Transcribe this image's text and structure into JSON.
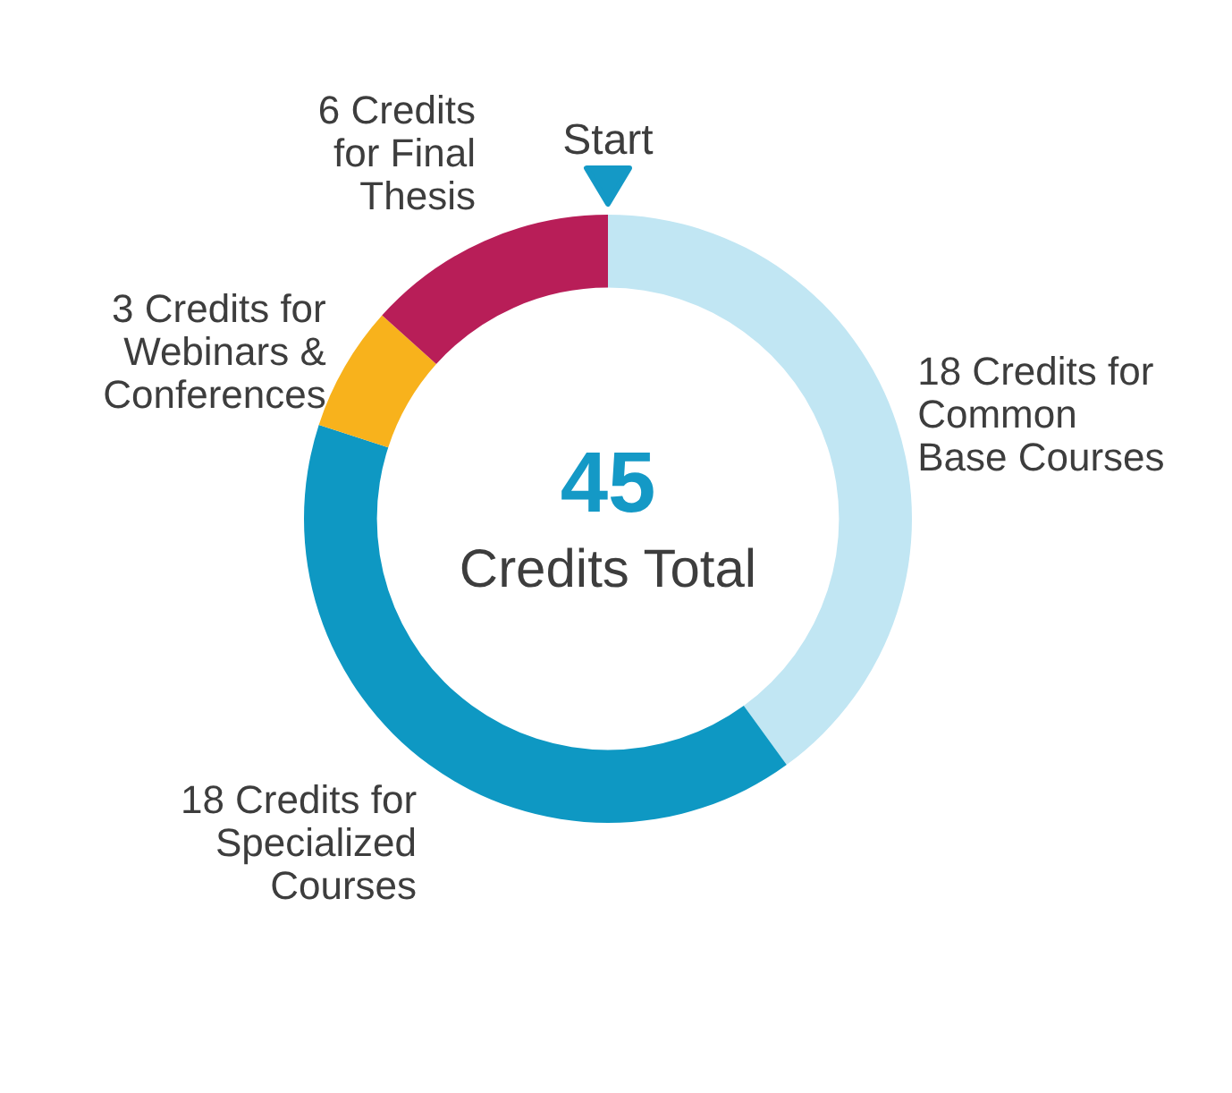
{
  "chart_data": {
    "type": "donut",
    "categories": [
      "18 Credits for Common Base Courses",
      "18 Credits for Specialized Courses",
      "3 Credits for Webinars & Conferences",
      "6 Credits for Final Thesis"
    ],
    "values": [
      18,
      18,
      3,
      6
    ],
    "colors": [
      "#c1e6f3",
      "#0e98c3",
      "#f8b21c",
      "#b81e58"
    ],
    "annotations": [
      "Start",
      "45",
      "Credits Total"
    ]
  }
}
